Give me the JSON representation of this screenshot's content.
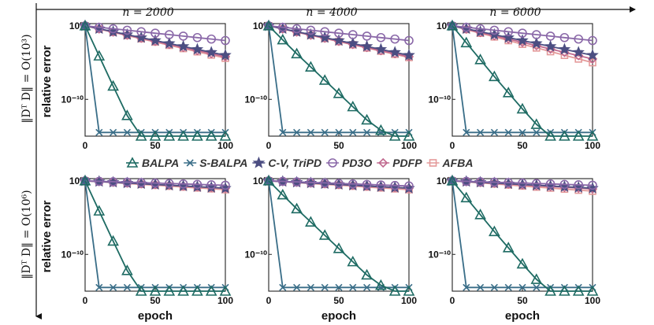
{
  "figure": {
    "column_titles": [
      "n = 2000",
      "n = 4000",
      "n = 6000"
    ],
    "row_labels": [
      "‖Dᵀ D‖ = O(10³)",
      "‖Dᵀ D‖ = O(10⁶)"
    ],
    "ylabel": "relative error",
    "xlabel": "epoch",
    "x_ticks": [
      "0",
      "50",
      "100"
    ],
    "y_ticks": [
      "10⁰",
      "10⁻¹⁰"
    ],
    "colors": {
      "BALPA": "#1e6b63",
      "S-BALPA": "#3a6e88",
      "C-V, TriPD": "#4c4e82",
      "PD3O": "#8a68a8",
      "PDFP": "#c0698e",
      "AFBA": "#e49a9a"
    }
  },
  "legend": [
    {
      "label": "BALPA",
      "icon": "triangle-marker"
    },
    {
      "label": "S-BALPA",
      "icon": "x-marker"
    },
    {
      "label": "C-V, TriPD",
      "icon": "star-marker"
    },
    {
      "label": "PD3O",
      "icon": "circle-marker"
    },
    {
      "label": "PDFP",
      "icon": "diamond-marker"
    },
    {
      "label": "AFBA",
      "icon": "square-marker"
    }
  ],
  "chart_data": [
    {
      "type": "line",
      "row": 0,
      "col": 0,
      "title": "n = 2000",
      "xlabel": "",
      "ylabel": "relative error",
      "xlim": [
        0,
        100
      ],
      "ylim_log10": [
        -15,
        0.3
      ],
      "x": [
        0,
        10,
        20,
        30,
        40,
        50,
        60,
        70,
        80,
        90,
        100
      ],
      "series": [
        {
          "name": "BALPA",
          "log10_values": [
            0,
            -4.1,
            -8.2,
            -12.2,
            -15,
            -15,
            -15,
            -15,
            -15,
            -15,
            -15
          ]
        },
        {
          "name": "S-BALPA",
          "log10_values": [
            0,
            -14.5,
            -14.5,
            -14.5,
            -14.5,
            -14.5,
            -14.5,
            -14.5,
            -14.5,
            -14.5,
            -14.5
          ]
        },
        {
          "name": "C-V, TriPD",
          "log10_values": [
            0,
            -0.4,
            -0.8,
            -1.2,
            -1.6,
            -2.0,
            -2.4,
            -2.8,
            -3.2,
            -3.6,
            -4.0
          ]
        },
        {
          "name": "PD3O",
          "log10_values": [
            0,
            -0.2,
            -0.4,
            -0.6,
            -0.8,
            -1.0,
            -1.2,
            -1.4,
            -1.6,
            -1.8,
            -2.0
          ]
        },
        {
          "name": "PDFP",
          "log10_values": [
            0,
            -0.42,
            -0.84,
            -1.26,
            -1.68,
            -2.1,
            -2.52,
            -2.94,
            -3.36,
            -3.78,
            -4.2
          ]
        },
        {
          "name": "AFBA",
          "log10_values": [
            0,
            -0.44,
            -0.88,
            -1.32,
            -1.76,
            -2.2,
            -2.64,
            -3.08,
            -3.52,
            -3.96,
            -4.4
          ]
        }
      ]
    },
    {
      "type": "line",
      "row": 0,
      "col": 1,
      "title": "n = 4000",
      "xlabel": "",
      "ylabel": "",
      "xlim": [
        0,
        100
      ],
      "ylim_log10": [
        -15,
        0.3
      ],
      "x": [
        0,
        10,
        20,
        30,
        40,
        50,
        60,
        70,
        80,
        90,
        100
      ],
      "series": [
        {
          "name": "BALPA",
          "log10_values": [
            0,
            -1.9,
            -3.8,
            -5.6,
            -7.4,
            -9.2,
            -11.0,
            -12.8,
            -14.2,
            -15,
            -15
          ]
        },
        {
          "name": "S-BALPA",
          "log10_values": [
            0,
            -14.5,
            -14.5,
            -14.5,
            -14.5,
            -14.5,
            -14.5,
            -14.5,
            -14.5,
            -14.5,
            -14.5
          ]
        },
        {
          "name": "C-V, TriPD",
          "log10_values": [
            0,
            -0.4,
            -0.8,
            -1.2,
            -1.6,
            -2.0,
            -2.4,
            -2.8,
            -3.2,
            -3.6,
            -4.0
          ]
        },
        {
          "name": "PD3O",
          "log10_values": [
            0,
            -0.2,
            -0.4,
            -0.6,
            -0.8,
            -1.0,
            -1.2,
            -1.4,
            -1.6,
            -1.8,
            -2.0
          ]
        },
        {
          "name": "PDFP",
          "log10_values": [
            0,
            -0.42,
            -0.84,
            -1.26,
            -1.68,
            -2.1,
            -2.52,
            -2.94,
            -3.36,
            -3.78,
            -4.2
          ]
        },
        {
          "name": "AFBA",
          "log10_values": [
            0,
            -0.43,
            -0.86,
            -1.29,
            -1.72,
            -2.15,
            -2.58,
            -3.01,
            -3.44,
            -3.87,
            -4.3
          ]
        }
      ]
    },
    {
      "type": "line",
      "row": 0,
      "col": 2,
      "title": "n = 6000",
      "xlabel": "",
      "ylabel": "",
      "xlim": [
        0,
        100
      ],
      "ylim_log10": [
        -15,
        0.3
      ],
      "x": [
        0,
        10,
        20,
        30,
        40,
        50,
        60,
        70,
        80,
        90,
        100
      ],
      "series": [
        {
          "name": "BALPA",
          "log10_values": [
            0,
            -2.3,
            -4.6,
            -6.9,
            -9.1,
            -11.3,
            -13.4,
            -15,
            -15,
            -15,
            -15
          ]
        },
        {
          "name": "S-BALPA",
          "log10_values": [
            0,
            -14.5,
            -14.5,
            -14.5,
            -14.5,
            -14.5,
            -14.5,
            -14.5,
            -14.5,
            -14.5,
            -14.5
          ]
        },
        {
          "name": "C-V, TriPD",
          "log10_values": [
            0,
            -0.4,
            -0.8,
            -1.2,
            -1.6,
            -2.0,
            -2.4,
            -2.8,
            -3.2,
            -3.6,
            -4.0
          ]
        },
        {
          "name": "PD3O",
          "log10_values": [
            0,
            -0.2,
            -0.4,
            -0.6,
            -0.8,
            -1.0,
            -1.2,
            -1.4,
            -1.6,
            -1.8,
            -2.0
          ]
        },
        {
          "name": "PDFP",
          "log10_values": [
            0,
            -0.45,
            -0.9,
            -1.35,
            -1.8,
            -2.25,
            -2.7,
            -3.15,
            -3.6,
            -4.05,
            -4.5
          ]
        },
        {
          "name": "AFBA",
          "log10_values": [
            0,
            -0.5,
            -1.0,
            -1.5,
            -2.0,
            -2.5,
            -3.0,
            -3.5,
            -4.0,
            -4.5,
            -5.0
          ]
        }
      ]
    },
    {
      "type": "line",
      "row": 1,
      "col": 0,
      "title": "",
      "xlabel": "epoch",
      "ylabel": "relative error",
      "xlim": [
        0,
        100
      ],
      "ylim_log10": [
        -15,
        0.3
      ],
      "x": [
        0,
        10,
        20,
        30,
        40,
        50,
        60,
        70,
        80,
        90,
        100
      ],
      "series": [
        {
          "name": "BALPA",
          "log10_values": [
            0,
            -4.1,
            -8.2,
            -12.2,
            -15,
            -15,
            -15,
            -15,
            -15,
            -15,
            -15
          ]
        },
        {
          "name": "S-BALPA",
          "log10_values": [
            0,
            -14.5,
            -14.5,
            -14.5,
            -14.5,
            -14.5,
            -14.5,
            -14.5,
            -14.5,
            -14.5,
            -14.5
          ]
        },
        {
          "name": "C-V, TriPD",
          "log10_values": [
            0,
            -0.1,
            -0.2,
            -0.3,
            -0.4,
            -0.5,
            -0.6,
            -0.7,
            -0.8,
            -0.9,
            -1.0
          ]
        },
        {
          "name": "PD3O",
          "log10_values": [
            0,
            -0.06,
            -0.12,
            -0.18,
            -0.24,
            -0.3,
            -0.36,
            -0.42,
            -0.48,
            -0.54,
            -0.6
          ]
        },
        {
          "name": "PDFP",
          "log10_values": [
            0,
            -0.1,
            -0.2,
            -0.3,
            -0.4,
            -0.5,
            -0.6,
            -0.7,
            -0.8,
            -0.9,
            -1.0
          ]
        },
        {
          "name": "AFBA",
          "log10_values": [
            0,
            -0.12,
            -0.24,
            -0.36,
            -0.48,
            -0.6,
            -0.72,
            -0.84,
            -0.96,
            -1.08,
            -1.2
          ]
        }
      ]
    },
    {
      "type": "line",
      "row": 1,
      "col": 1,
      "title": "",
      "xlabel": "epoch",
      "ylabel": "",
      "xlim": [
        0,
        100
      ],
      "ylim_log10": [
        -15,
        0.3
      ],
      "x": [
        0,
        10,
        20,
        30,
        40,
        50,
        60,
        70,
        80,
        90,
        100
      ],
      "series": [
        {
          "name": "BALPA",
          "log10_values": [
            0,
            -1.9,
            -3.8,
            -5.6,
            -7.4,
            -9.2,
            -11.0,
            -12.8,
            -14.2,
            -15,
            -15
          ]
        },
        {
          "name": "S-BALPA",
          "log10_values": [
            0,
            -14.5,
            -14.5,
            -14.5,
            -14.5,
            -14.5,
            -14.5,
            -14.5,
            -14.5,
            -14.5,
            -14.5
          ]
        },
        {
          "name": "C-V, TriPD",
          "log10_values": [
            0,
            -0.1,
            -0.2,
            -0.3,
            -0.4,
            -0.5,
            -0.6,
            -0.7,
            -0.8,
            -0.9,
            -1.0
          ]
        },
        {
          "name": "PD3O",
          "log10_values": [
            0,
            -0.07,
            -0.14,
            -0.21,
            -0.28,
            -0.35,
            -0.42,
            -0.49,
            -0.56,
            -0.63,
            -0.7
          ]
        },
        {
          "name": "PDFP",
          "log10_values": [
            0,
            -0.1,
            -0.2,
            -0.3,
            -0.4,
            -0.5,
            -0.6,
            -0.7,
            -0.8,
            -0.9,
            -1.0
          ]
        },
        {
          "name": "AFBA",
          "log10_values": [
            0,
            -0.12,
            -0.24,
            -0.36,
            -0.48,
            -0.6,
            -0.72,
            -0.84,
            -0.96,
            -1.08,
            -1.2
          ]
        }
      ]
    },
    {
      "type": "line",
      "row": 1,
      "col": 2,
      "title": "",
      "xlabel": "epoch",
      "ylabel": "",
      "xlim": [
        0,
        100
      ],
      "ylim_log10": [
        -15,
        0.3
      ],
      "x": [
        0,
        10,
        20,
        30,
        40,
        50,
        60,
        70,
        80,
        90,
        100
      ],
      "series": [
        {
          "name": "BALPA",
          "log10_values": [
            0,
            -2.3,
            -4.6,
            -6.9,
            -9.1,
            -11.3,
            -13.4,
            -15,
            -15,
            -15,
            -15
          ]
        },
        {
          "name": "S-BALPA",
          "log10_values": [
            0,
            -14.5,
            -14.5,
            -14.5,
            -14.5,
            -14.5,
            -14.5,
            -14.5,
            -14.5,
            -14.5,
            -14.5
          ]
        },
        {
          "name": "C-V, TriPD",
          "log10_values": [
            0,
            -0.1,
            -0.2,
            -0.3,
            -0.4,
            -0.5,
            -0.6,
            -0.7,
            -0.8,
            -0.9,
            -1.0
          ]
        },
        {
          "name": "PD3O",
          "log10_values": [
            0,
            -0.06,
            -0.12,
            -0.18,
            -0.24,
            -0.3,
            -0.36,
            -0.42,
            -0.48,
            -0.54,
            -0.6
          ]
        },
        {
          "name": "PDFP",
          "log10_values": [
            0,
            -0.11,
            -0.22,
            -0.33,
            -0.44,
            -0.55,
            -0.66,
            -0.77,
            -0.88,
            -0.99,
            -1.1
          ]
        },
        {
          "name": "AFBA",
          "log10_values": [
            0,
            -0.14,
            -0.28,
            -0.42,
            -0.56,
            -0.7,
            -0.84,
            -0.98,
            -1.12,
            -1.26,
            -1.4
          ]
        }
      ]
    }
  ]
}
